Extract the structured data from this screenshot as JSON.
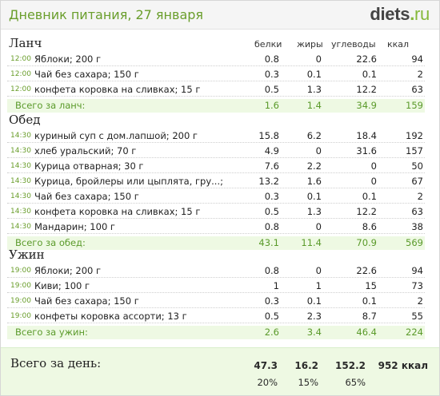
{
  "header": {
    "title": "Дневник питания, 27 января",
    "logo_main": "diets",
    "logo_dot": ".",
    "logo_tld": "ru"
  },
  "columns": {
    "protein": "белки",
    "fat": "жиры",
    "carbs": "углеводы",
    "kcal": "ккал"
  },
  "meals": [
    {
      "title": "Ланч",
      "items": [
        {
          "time": "12:00",
          "name": "Яблоки; 200 г",
          "protein": "0.8",
          "fat": "0",
          "carbs": "22.6",
          "kcal": "94"
        },
        {
          "time": "12:00",
          "name": "Чай без сахара; 150 г",
          "protein": "0.3",
          "fat": "0.1",
          "carbs": "0.1",
          "kcal": "2"
        },
        {
          "time": "12:00",
          "name": "конфета коровка на сливках; 15 г",
          "protein": "0.5",
          "fat": "1.3",
          "carbs": "12.2",
          "kcal": "63"
        }
      ],
      "total": {
        "label": "Всего за ланч:",
        "protein": "1.6",
        "fat": "1.4",
        "carbs": "34.9",
        "kcal": "159"
      }
    },
    {
      "title": "Обед",
      "items": [
        {
          "time": "14:30",
          "name": "куриный суп с дом.лапшой; 200 г",
          "protein": "15.8",
          "fat": "6.2",
          "carbs": "18.4",
          "kcal": "192"
        },
        {
          "time": "14:30",
          "name": "хлеб уральский; 70 г",
          "protein": "4.9",
          "fat": "0",
          "carbs": "31.6",
          "kcal": "157"
        },
        {
          "time": "14:30",
          "name": "Курица отварная; 30 г",
          "protein": "7.6",
          "fat": "2.2",
          "carbs": "0",
          "kcal": "50"
        },
        {
          "time": "14:30",
          "name": "Курица, бройлеры или цыплята, гру...; 40 г",
          "protein": "13.2",
          "fat": "1.6",
          "carbs": "0",
          "kcal": "67"
        },
        {
          "time": "14:30",
          "name": "Чай без сахара; 150 г",
          "protein": "0.3",
          "fat": "0.1",
          "carbs": "0.1",
          "kcal": "2"
        },
        {
          "time": "14:30",
          "name": "конфета коровка на сливках; 15 г",
          "protein": "0.5",
          "fat": "1.3",
          "carbs": "12.2",
          "kcal": "63"
        },
        {
          "time": "14:30",
          "name": "Мандарин; 100 г",
          "protein": "0.8",
          "fat": "0",
          "carbs": "8.6",
          "kcal": "38"
        }
      ],
      "total": {
        "label": "Всего за обед:",
        "protein": "43.1",
        "fat": "11.4",
        "carbs": "70.9",
        "kcal": "569"
      }
    },
    {
      "title": "Ужин",
      "items": [
        {
          "time": "19:00",
          "name": "Яблоки; 200 г",
          "protein": "0.8",
          "fat": "0",
          "carbs": "22.6",
          "kcal": "94"
        },
        {
          "time": "19:00",
          "name": "Киви; 100 г",
          "protein": "1",
          "fat": "1",
          "carbs": "15",
          "kcal": "73"
        },
        {
          "time": "19:00",
          "name": "Чай без сахара; 150 г",
          "protein": "0.3",
          "fat": "0.1",
          "carbs": "0.1",
          "kcal": "2"
        },
        {
          "time": "19:00",
          "name": "конфеты коровка ассорти; 13 г",
          "protein": "0.5",
          "fat": "2.3",
          "carbs": "8.7",
          "kcal": "55"
        }
      ],
      "total": {
        "label": "Всего за ужин:",
        "protein": "2.6",
        "fat": "3.4",
        "carbs": "46.4",
        "kcal": "224"
      }
    }
  ],
  "day_total": {
    "label": "Всего за день:",
    "protein": "47.3",
    "fat": "16.2",
    "carbs": "152.2",
    "kcal": "952 ккал",
    "protein_pct": "20%",
    "fat_pct": "15%",
    "carbs_pct": "65%"
  },
  "colors": {
    "accent_green": "#6a9e2c",
    "total_bg": "#eef9e3"
  }
}
